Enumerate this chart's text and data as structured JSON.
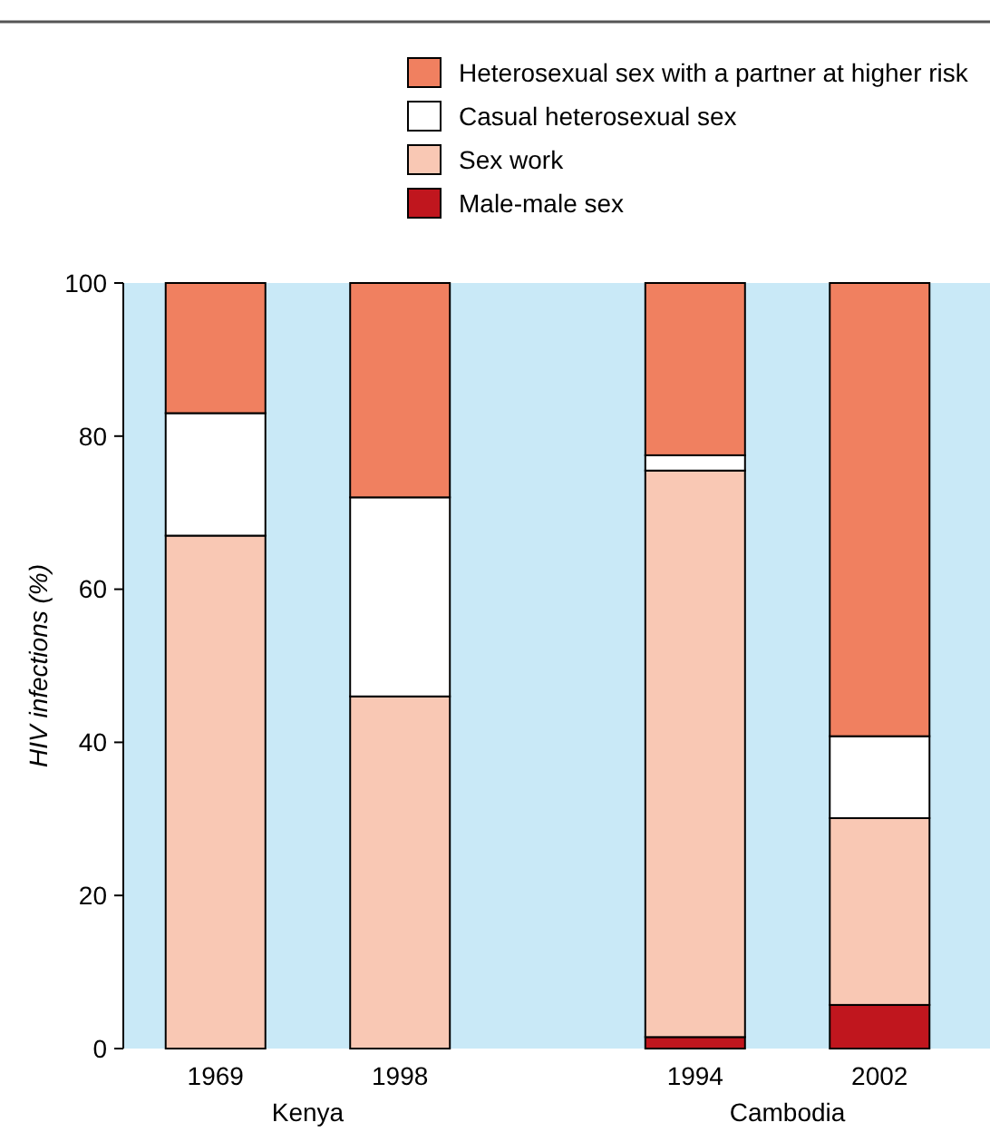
{
  "chart_data": {
    "type": "bar",
    "stacked": true,
    "ylabel": "HIV infections (%)",
    "categories": [
      "1969",
      "1998",
      null,
      "1994",
      "2002"
    ],
    "series": [
      {
        "name": "Male-male sex",
        "color": "#c0161e",
        "values": [
          0,
          0,
          null,
          1.5,
          5.7
        ]
      },
      {
        "name": "Sex work",
        "color": "#f9c8b4",
        "values": [
          67,
          46,
          null,
          74,
          24.4
        ]
      },
      {
        "name": "Casual heterosexual sex",
        "color": "#ffffff",
        "values": [
          16,
          26,
          null,
          2,
          10.7
        ]
      },
      {
        "name": "Heterosexual sex with a partner at higher risk",
        "color": "#f08060",
        "values": [
          17,
          28,
          null,
          22.5,
          59.2
        ]
      }
    ],
    "ylim": [
      0,
      100
    ],
    "yticks": [
      0,
      20,
      40,
      60,
      80,
      100
    ],
    "grid": false,
    "legend": "top right",
    "annotations": [
      "Kenya",
      "Cambodia"
    ]
  }
}
